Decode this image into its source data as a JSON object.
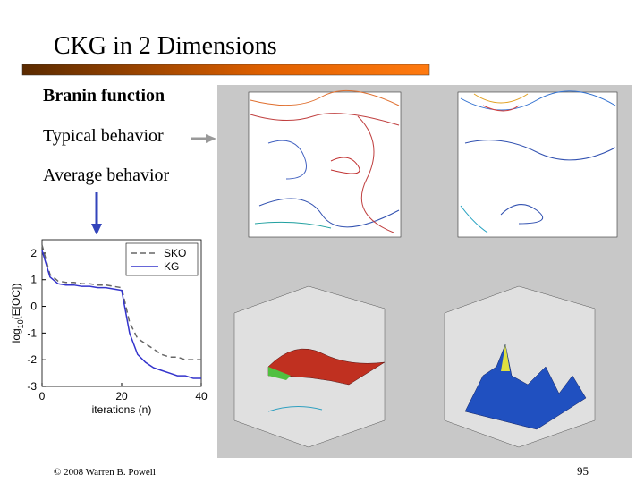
{
  "header": {
    "title": "CKG in 2 Dimensions"
  },
  "bullets": [
    "Branin function",
    "Typical behavior",
    "Average behavior"
  ],
  "footer": {
    "copyright": "© 2008 Warren B. Powell",
    "page_number": "95"
  },
  "chart_data": {
    "type": "line",
    "y_label_parts": [
      "log",
      "10",
      "(E[OC])"
    ],
    "x_label": "iterations (n)",
    "x": [
      0,
      2,
      4,
      6,
      8,
      10,
      12,
      14,
      16,
      18,
      20,
      22,
      24,
      26,
      28,
      30,
      32,
      34,
      36,
      38,
      40
    ],
    "series": [
      {
        "name": "SKO",
        "color": "#666666",
        "dashed": true,
        "values": [
          2.3,
          1.2,
          0.95,
          0.9,
          0.9,
          0.85,
          0.85,
          0.8,
          0.8,
          0.75,
          0.7,
          -0.6,
          -1.2,
          -1.4,
          -1.6,
          -1.8,
          -1.9,
          -1.9,
          -2.0,
          -2.0,
          -2.0
        ]
      },
      {
        "name": "KG",
        "color": "#3333cc",
        "dashed": false,
        "values": [
          2.1,
          1.1,
          0.85,
          0.8,
          0.8,
          0.75,
          0.75,
          0.7,
          0.7,
          0.65,
          0.6,
          -1.0,
          -1.8,
          -2.1,
          -2.3,
          -2.4,
          -2.5,
          -2.6,
          -2.6,
          -2.7,
          -2.7
        ]
      }
    ],
    "xlim": [
      0,
      40
    ],
    "xticks": [
      0,
      20,
      40
    ],
    "ylim": [
      -3,
      2.5
    ],
    "yticks": [
      -3,
      -2,
      -1,
      0,
      1,
      2
    ],
    "legend": "upper right"
  }
}
